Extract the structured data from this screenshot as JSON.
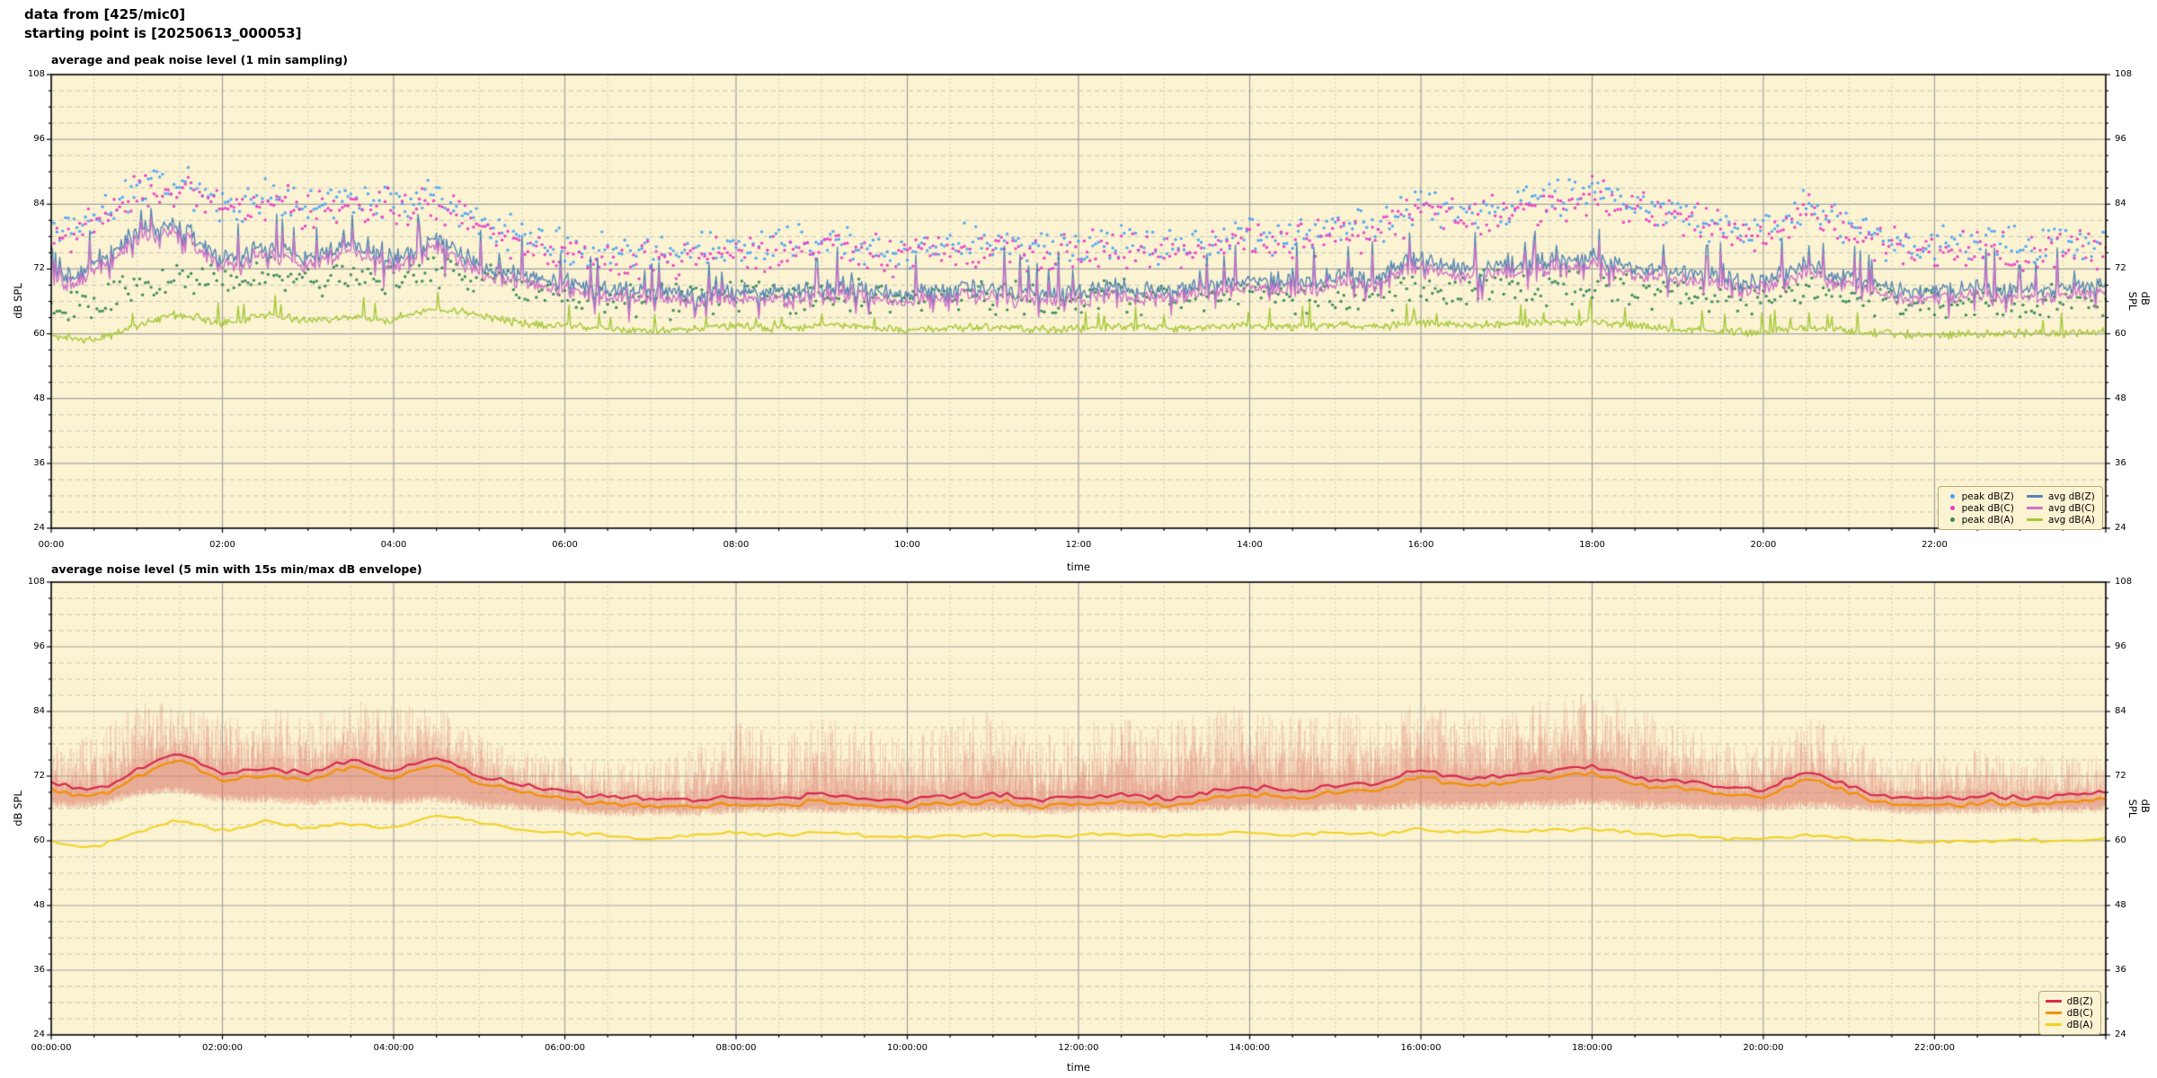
{
  "header": {
    "line1": "data from [425/mic0]",
    "line2": "starting point is [20250613_000053]"
  },
  "figure_style": {
    "background": "#ffffff",
    "plot_background": "#fbf3d2",
    "grid_major_color": "#a3a3a3",
    "grid_minor_color": "#bfbfb2",
    "spine_color": "#000000",
    "text_color": "#000000",
    "legend_background": "#fbf3d2",
    "legend_border": "#b9a97c"
  },
  "chart_data": [
    {
      "type": "line+scatter",
      "title": "average and peak noise level (1 min sampling)",
      "xlabel": "time",
      "ylabel": "dB SPL",
      "ylabel_right": "dB SPL",
      "ylim": [
        24,
        108
      ],
      "xlim_hours": [
        0,
        24
      ],
      "y_ticks": [
        24,
        36,
        48,
        60,
        72,
        84,
        96,
        108
      ],
      "y_minor_step": 3,
      "x_minor_step_hours": 0.5,
      "x_ticks": {
        "hours": [
          0,
          2,
          4,
          6,
          8,
          10,
          12,
          14,
          16,
          18,
          20,
          22
        ],
        "labels": [
          "00:00",
          "02:00",
          "04:00",
          "06:00",
          "08:00",
          "10:00",
          "12:00",
          "14:00",
          "16:00",
          "18:00",
          "20:00",
          "22:00"
        ]
      },
      "sample_interval_min": 1,
      "keypoint_interval_min": 30,
      "legend": {
        "location": "lower right",
        "columns": 2,
        "order": [
          "peak dB(Z)",
          "peak dB(C)",
          "peak dB(A)",
          "avg dB(Z)",
          "avg dB(C)",
          "avg dB(A)"
        ]
      },
      "series": [
        {
          "name": "peak dB(Z)",
          "style": "scatter",
          "color": "#4aa3f5",
          "spread_db": 4.3,
          "values": [
            79,
            81,
            87,
            87.5,
            84,
            85,
            84,
            85.5,
            84,
            85,
            81,
            78,
            76,
            75,
            75,
            75,
            76,
            76,
            77,
            76,
            75.5,
            76,
            77,
            75.5,
            76,
            77,
            76,
            77,
            78,
            77.5,
            79,
            80,
            84,
            83,
            84,
            85,
            86,
            84,
            82,
            80,
            79,
            83,
            80,
            77,
            76,
            77,
            76,
            76.5,
            77
          ]
        },
        {
          "name": "peak dB(C)",
          "style": "scatter",
          "color": "#ea3bc6",
          "spread_db": 4.3,
          "values": [
            78,
            80,
            86,
            86.5,
            83,
            84,
            83,
            84.5,
            83,
            84,
            80,
            77,
            75,
            74,
            74,
            74,
            75,
            75,
            76,
            75,
            74.5,
            75,
            76,
            74.5,
            75,
            76,
            75,
            76,
            77,
            76.5,
            78,
            79,
            83,
            82,
            83,
            84,
            85,
            83,
            81,
            79,
            78,
            82,
            79,
            76,
            75,
            76,
            75,
            75.5,
            76
          ]
        },
        {
          "name": "peak dB(A)",
          "style": "scatter",
          "color": "#38875a",
          "spread_db": 3.8,
          "values": [
            66,
            66,
            69,
            71,
            69.5,
            71,
            70,
            70.5,
            70,
            72,
            70,
            68,
            67,
            66.5,
            66,
            66.5,
            67,
            66.5,
            67,
            66.5,
            66.3,
            66.5,
            67,
            66.3,
            66.5,
            67,
            66.5,
            67,
            67.5,
            67,
            67.5,
            67.3,
            68.5,
            68,
            68.3,
            68.5,
            69,
            68,
            67.5,
            67,
            66.8,
            68,
            67,
            66,
            65.8,
            66,
            66.2,
            66,
            66.5
          ]
        },
        {
          "name": "avg dB(Z)",
          "style": "line",
          "color": "#5586b4",
          "spread_db": 2.0,
          "values": [
            71,
            72.5,
            78.5,
            79.5,
            74,
            76,
            74.5,
            76.5,
            74,
            77,
            73,
            71,
            69.5,
            68.5,
            68,
            67.5,
            68,
            67.5,
            68.5,
            68,
            67.5,
            68,
            68.5,
            67.5,
            68,
            68.5,
            68,
            69,
            70,
            69.5,
            70.5,
            71,
            73.5,
            72,
            72.5,
            73.5,
            74,
            72.5,
            71.5,
            70.5,
            70,
            72.5,
            70.5,
            68.5,
            68,
            68.5,
            68,
            68.5,
            69
          ]
        },
        {
          "name": "avg dB(C)",
          "style": "line",
          "color": "#cd72c8",
          "spread_db": 1.8,
          "values": [
            69.6,
            71.1,
            77.1,
            78.1,
            72.6,
            74.6,
            73.1,
            75.1,
            72.6,
            75.6,
            71.6,
            69.6,
            68.1,
            67.1,
            66.6,
            66.1,
            66.6,
            66.1,
            67.1,
            66.6,
            66.1,
            66.6,
            67.1,
            66.1,
            66.6,
            67.1,
            66.6,
            67.6,
            68.6,
            68.1,
            69.1,
            69.6,
            72.1,
            70.6,
            71.1,
            72.1,
            72.6,
            71.1,
            70.1,
            69.1,
            68.6,
            71.1,
            69.1,
            67.1,
            66.6,
            67.1,
            66.6,
            67.1,
            67.6
          ]
        },
        {
          "name": "avg dB(A)",
          "style": "line",
          "color": "#a6c838",
          "spread_db": 0.9,
          "values": [
            59.8,
            59,
            61.5,
            63.5,
            62,
            63.5,
            62.5,
            63,
            62.5,
            64.5,
            63.5,
            62,
            61.5,
            61,
            60.5,
            61,
            61.5,
            61,
            61.5,
            61,
            60.8,
            61,
            61.2,
            60.8,
            61,
            61.3,
            61,
            61.2,
            61.5,
            61.2,
            61.5,
            61.3,
            62,
            61.5,
            61.8,
            62,
            62.2,
            61.5,
            61,
            60.5,
            60.3,
            61,
            60.5,
            60,
            59.8,
            60,
            60.2,
            60,
            60.5
          ]
        }
      ]
    },
    {
      "type": "line+envelope",
      "title": "average noise level (5 min with 15s min/max dB envelope)",
      "xlabel": "time",
      "ylabel": "dB SPL",
      "ylabel_right": "dB SPL",
      "ylim": [
        24,
        108
      ],
      "xlim_hours": [
        0,
        24
      ],
      "y_ticks": [
        24,
        36,
        48,
        60,
        72,
        84,
        96,
        108
      ],
      "y_minor_step": 3,
      "x_minor_step_hours": 0.5,
      "x_ticks": {
        "hours": [
          0,
          2,
          4,
          6,
          8,
          10,
          12,
          14,
          16,
          18,
          20,
          22
        ],
        "labels": [
          "00:00:00",
          "02:00:00",
          "04:00:00",
          "06:00:00",
          "08:00:00",
          "10:00:00",
          "12:00:00",
          "14:00:00",
          "16:00:00",
          "18:00:00",
          "20:00:00",
          "22:00:00"
        ]
      },
      "sample_interval_min": 5,
      "keypoint_interval_min": 30,
      "legend": {
        "location": "lower right",
        "columns": 1,
        "order": [
          "dB(Z)",
          "dB(C)",
          "dB(A)"
        ]
      },
      "envelope": {
        "name": "15s min/max envelope",
        "color": "rgba(223,124,108,0.38)",
        "max": [
          78,
          80,
          85,
          86,
          83,
          85,
          84,
          86,
          85,
          85,
          80,
          77,
          76,
          75,
          76,
          78,
          82,
          80,
          83,
          81,
          80,
          82,
          84,
          80,
          82,
          83,
          82,
          84,
          85,
          83,
          84,
          83,
          86,
          84,
          85,
          87,
          88,
          85,
          82,
          79,
          78,
          83,
          79,
          76,
          76,
          77,
          76,
          76,
          77
        ],
        "min": [
          66,
          66,
          68,
          68.5,
          67,
          67,
          66.5,
          67,
          66.5,
          67,
          66,
          65.5,
          65,
          64.5,
          64.5,
          64.5,
          65,
          65,
          65,
          65,
          64.8,
          65,
          65.2,
          64.8,
          65,
          65.2,
          65,
          65.3,
          65.5,
          65.3,
          65.5,
          65.5,
          66,
          65.8,
          66,
          66.2,
          66.5,
          66,
          65.8,
          65.5,
          65.3,
          66,
          65.5,
          65,
          64.8,
          65,
          65,
          65,
          65.2
        ]
      },
      "series": [
        {
          "name": "dB(Z)",
          "style": "line",
          "color": "#d7294d",
          "spread_db": 0.7,
          "values": [
            70.5,
            69.8,
            73,
            76,
            72.5,
            73.5,
            72.5,
            75,
            73,
            75.5,
            72,
            70.5,
            69,
            68.3,
            68,
            67.5,
            68,
            67.8,
            68.5,
            68,
            67.6,
            68,
            68.5,
            67.6,
            68,
            68.5,
            68,
            69,
            70,
            69.3,
            70.3,
            70.8,
            73,
            71.5,
            72,
            73,
            73.5,
            72,
            71,
            70,
            69.7,
            72.3,
            70.2,
            68.3,
            67.8,
            68.3,
            68,
            68.4,
            69
          ]
        },
        {
          "name": "dB(C)",
          "style": "line",
          "color": "#f19000",
          "spread_db": 0.7,
          "values": [
            69.2,
            68.5,
            71.7,
            74.7,
            71.2,
            72.2,
            71.2,
            73.7,
            71.7,
            74.2,
            70.7,
            69.2,
            67.7,
            67,
            66.7,
            66.2,
            66.7,
            66.5,
            67.2,
            66.7,
            66.3,
            66.7,
            67.2,
            66.3,
            66.7,
            67.2,
            66.7,
            67.7,
            68.7,
            68,
            69,
            69.5,
            71.7,
            70.2,
            70.7,
            71.7,
            72.2,
            70.7,
            69.7,
            68.7,
            68.4,
            71,
            68.9,
            67,
            66.5,
            67,
            66.7,
            67.1,
            67.7
          ]
        },
        {
          "name": "dB(A)",
          "style": "line",
          "color": "#f2d11e",
          "spread_db": 0.45,
          "values": [
            59.8,
            59,
            61.5,
            63.5,
            62,
            63.5,
            62.5,
            63,
            62.5,
            64.5,
            63.5,
            62,
            61.5,
            61,
            60.5,
            61,
            61.5,
            61,
            61.5,
            61,
            60.8,
            61,
            61.2,
            60.8,
            61,
            61.3,
            61,
            61.2,
            61.5,
            61.2,
            61.5,
            61.3,
            62,
            61.5,
            61.8,
            62,
            62.2,
            61.5,
            61,
            60.5,
            60.3,
            61,
            60.5,
            60,
            59.8,
            60,
            60.2,
            60,
            60.5
          ]
        }
      ]
    }
  ]
}
